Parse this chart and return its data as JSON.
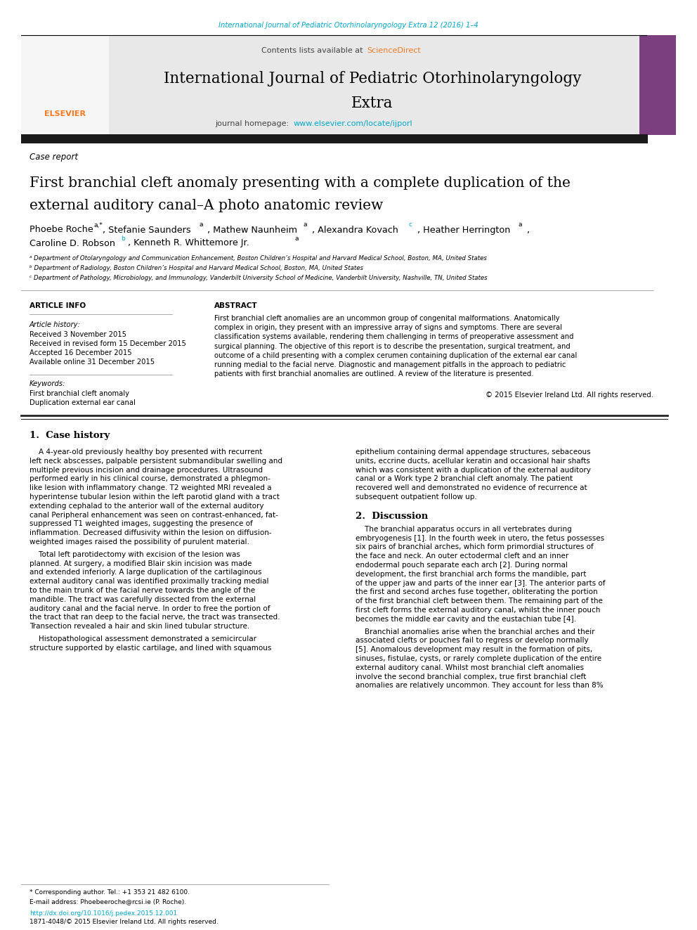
{
  "page_bg": "#ffffff",
  "top_journal_line": "International Journal of Pediatric Otorhinolaryngology Extra 12 (2016) 1–4",
  "top_journal_color": "#00aacc",
  "contents_line": "Contents lists available at ",
  "science_direct": "ScienceDirect",
  "science_direct_color": "#f47920",
  "journal_title_line1": "International Journal of Pediatric Otorhinolaryngology",
  "journal_title_line2": "Extra",
  "journal_homepage_label": "journal homepage: ",
  "journal_homepage_url": "www.elsevier.com/locate/ijporl",
  "journal_homepage_url_color": "#00aacc",
  "header_bg": "#e8e8e8",
  "black_bar_color": "#1a1a1a",
  "case_report_label": "Case report",
  "article_title_line1": "First branchial cleft anomaly presenting with a complete duplication of the",
  "article_title_line2": "external auditory canal–A photo anatomic review",
  "affil_a": "ᵃ Department of Otolaryngology and Communication Enhancement, Boston Children’s Hospital and Harvard Medical School, Boston, MA, United States",
  "affil_b": "ᵇ Department of Radiology, Boston Children’s Hospital and Harvard Medical School, Boston, MA, United States",
  "affil_c": "ᶜ Department of Pathology, Microbiology, and Immunology, Vanderbilt University School of Medicine, Vanderbilt University, Nashville, TN, United States",
  "section_article_info": "ARTICLE INFO",
  "section_abstract": "ABSTRACT",
  "article_history_label": "Article history:",
  "received": "Received 3 November 2015",
  "revised": "Received in revised form 15 December 2015",
  "accepted": "Accepted 16 December 2015",
  "online": "Available online 31 December 2015",
  "keywords_label": "Keywords:",
  "keyword1": "First branchial cleft anomaly",
  "keyword2": "Duplication external ear canal",
  "copyright": "© 2015 Elsevier Ireland Ltd. All rights reserved.",
  "section1_title": "1.  Case history",
  "section2_title": "2.  Discussion",
  "footer_note1": "* Corresponding author. Tel.: +1 353 21 482 6100.",
  "footer_note2": "E-mail address: Phoebeeroche@rcsi.ie (P. Roche).",
  "footer_doi": "http://dx.doi.org/10.1016/j.pedex.2015.12.001",
  "footer_doi_color": "#00aacc",
  "footer_issn": "1871-4048/© 2015 Elsevier Ireland Ltd. All rights reserved.",
  "sup_color_blue": "#00aacc",
  "sup_color_black": "#000000"
}
